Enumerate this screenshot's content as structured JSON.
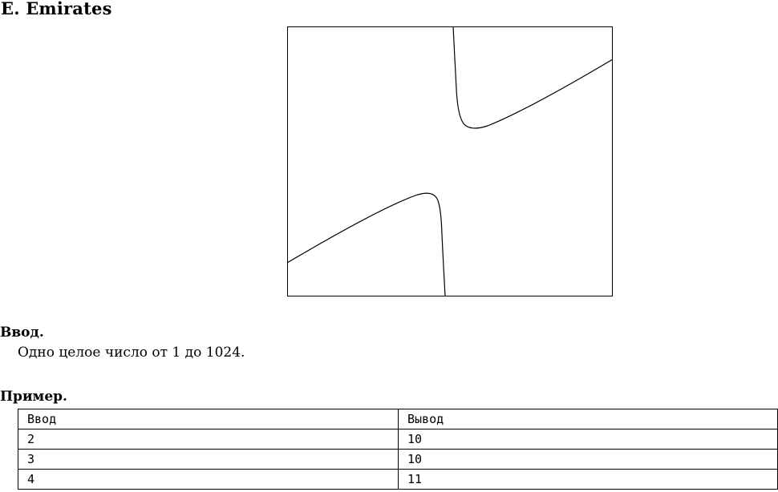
{
  "title": "E. Emirates",
  "figure": {
    "kind": "curve-illustration",
    "stroke_color": "#000000"
  },
  "input_section": {
    "heading": "Ввод.",
    "text": "Одно целое число от 1 до 1024."
  },
  "example_section": {
    "heading": "Пример.",
    "columns": [
      "Ввод",
      "Вывод"
    ],
    "rows": [
      [
        "2",
        "10"
      ],
      [
        "3",
        "10"
      ],
      [
        "4",
        "11"
      ]
    ]
  }
}
